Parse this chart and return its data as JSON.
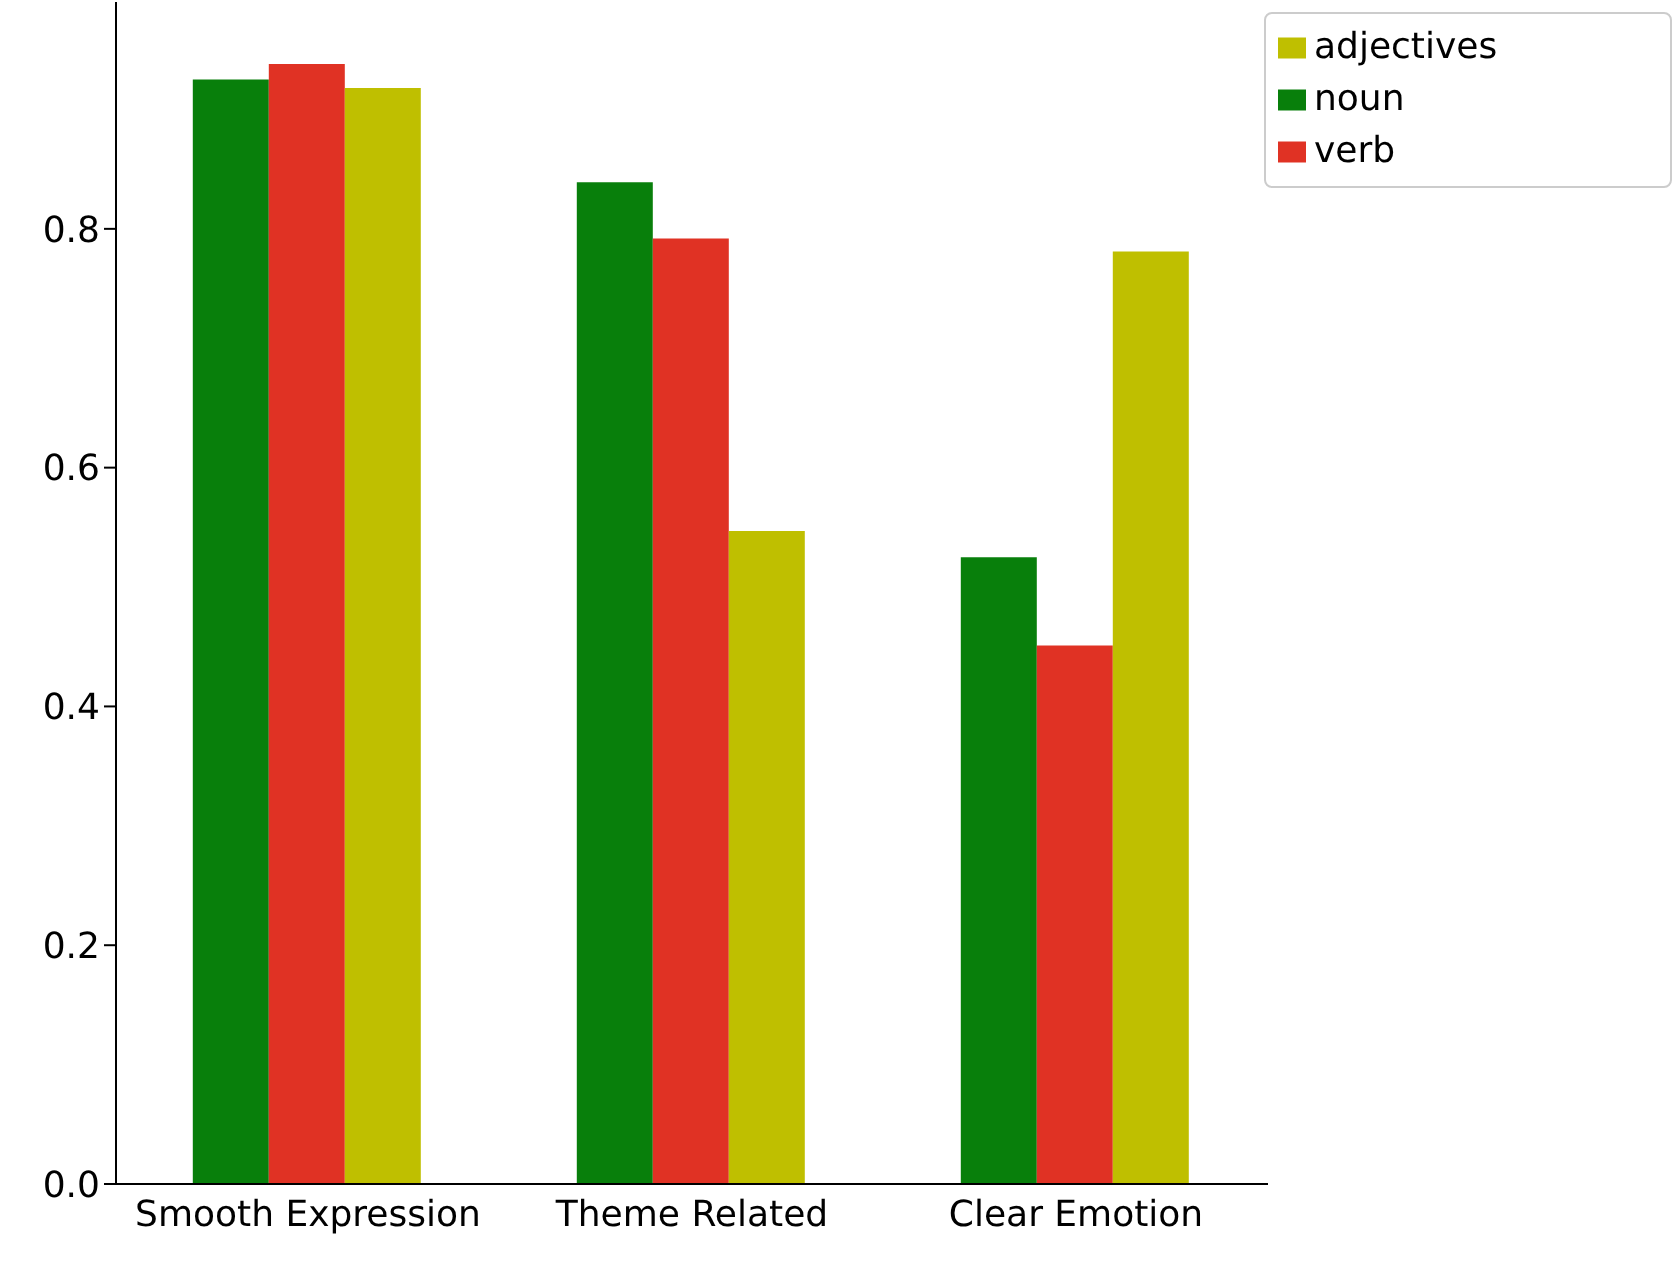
{
  "chart_data": {
    "type": "bar",
    "categories": [
      "Smooth Expression",
      "Theme Related",
      "Clear Emotion"
    ],
    "series": [
      {
        "name": "noun",
        "color": "#087f0b",
        "values": [
          0.925,
          0.839,
          0.525
        ]
      },
      {
        "name": "verb",
        "color": "#e03224",
        "values": [
          0.938,
          0.792,
          0.451
        ]
      },
      {
        "name": "adjectives",
        "color": "#bfbf00",
        "values": [
          0.918,
          0.547,
          0.781
        ]
      }
    ],
    "ylim": [
      0,
      0.99
    ],
    "yticks": [
      {
        "value": 0,
        "label": "0.0"
      },
      0.2,
      0.4,
      0.6,
      0.8
    ],
    "legend": "top right"
  }
}
